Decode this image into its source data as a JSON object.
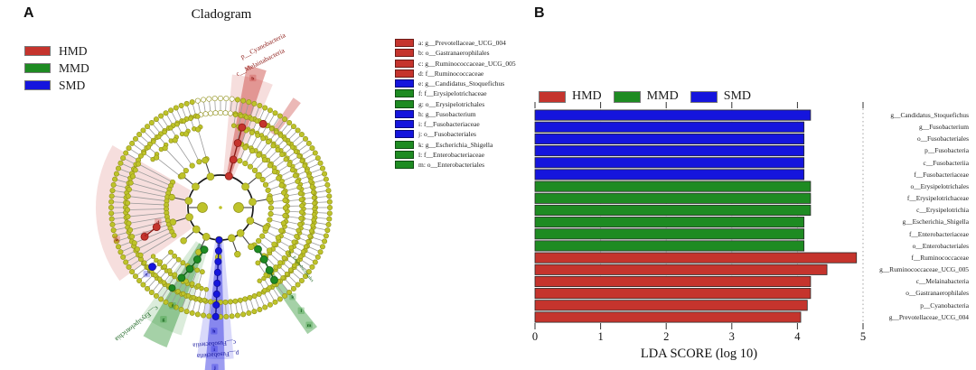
{
  "colors": {
    "hmd": "#c5342d",
    "mmd": "#1e8b22",
    "smd": "#1515dd",
    "hmd_dark": "#8c1a16",
    "mmd_dark": "#14601a",
    "smd_dark": "#10109a",
    "node_yellow": "#bec32a",
    "node_yellow_stroke": "#8f8f17"
  },
  "panel_a": {
    "label": "A",
    "title": "Cladogram",
    "group_legend": [
      {
        "label": "HMD",
        "color_key": "hmd"
      },
      {
        "label": "MMD",
        "color_key": "mmd"
      },
      {
        "label": "SMD",
        "color_key": "smd"
      }
    ],
    "taxa_legend": [
      {
        "key": "a",
        "label": "g__Prevotellaceae_UCG_004",
        "color_key": "hmd"
      },
      {
        "key": "b",
        "label": "o__Gastranaerophilales",
        "color_key": "hmd"
      },
      {
        "key": "c",
        "label": "g__Ruminococcaceae_UCG_005",
        "color_key": "hmd"
      },
      {
        "key": "d",
        "label": "f__Ruminococcaceae",
        "color_key": "hmd"
      },
      {
        "key": "e",
        "label": "g__Candidatus_Stoquefichus",
        "color_key": "smd"
      },
      {
        "key": "f",
        "label": "f__Erysipelotrichaceae",
        "color_key": "mmd"
      },
      {
        "key": "g",
        "label": "o__Erysipelotrichales",
        "color_key": "mmd"
      },
      {
        "key": "h",
        "label": "g__Fusobacterium",
        "color_key": "smd"
      },
      {
        "key": "i",
        "label": "f__Fusobacteriaceae",
        "color_key": "smd"
      },
      {
        "key": "j",
        "label": "o__Fusobacteriales",
        "color_key": "smd"
      },
      {
        "key": "k",
        "label": "g__Escherichia_Shigella",
        "color_key": "mmd"
      },
      {
        "key": "l",
        "label": "f__Enterobacteriaceae",
        "color_key": "mmd"
      },
      {
        "key": "m",
        "label": "o__Enterobacteriales",
        "color_key": "mmd"
      }
    ],
    "wedge_labels": [
      {
        "text": "p__Cyanobacteria",
        "color_key": "hmd_dark"
      },
      {
        "text": "c__Melainabacteria",
        "color_key": "hmd_dark"
      },
      {
        "text": "c__Erysipelotrichia",
        "color_key": "mmd_dark"
      },
      {
        "text": "c__Fusobacteriia",
        "color_key": "smd_dark"
      },
      {
        "text": "p__Fusobacteria",
        "color_key": "smd_dark"
      },
      {
        "text": "o__Enterobacteriales",
        "color_key": "mmd_dark"
      }
    ]
  },
  "panel_b": {
    "label": "B",
    "legend": [
      {
        "label": "HMD",
        "color_key": "hmd"
      },
      {
        "label": "MMD",
        "color_key": "mmd"
      },
      {
        "label": "SMD",
        "color_key": "smd"
      }
    ]
  },
  "chart_data": {
    "type": "bar",
    "orientation": "horizontal",
    "title": "",
    "xlabel": "LDA SCORE (log 10)",
    "ylabel": "",
    "xlim": [
      0,
      5
    ],
    "xticks": [
      0,
      1,
      2,
      3,
      4,
      5
    ],
    "grid": "dotted-vertical",
    "legend_position": "top",
    "bars": [
      {
        "label": "g__Candidatus_Stoquefichus",
        "group": "SMD",
        "value": 4.2
      },
      {
        "label": "g__Fusobacterium",
        "group": "SMD",
        "value": 4.1
      },
      {
        "label": "o__Fusobacteriales",
        "group": "SMD",
        "value": 4.1
      },
      {
        "label": "p__Fusobacteria",
        "group": "SMD",
        "value": 4.1
      },
      {
        "label": "c__Fusobacteriia",
        "group": "SMD",
        "value": 4.1
      },
      {
        "label": "f__Fusobacteriaceae",
        "group": "SMD",
        "value": 4.1
      },
      {
        "label": "o__Erysipelotrichales",
        "group": "MMD",
        "value": 4.2
      },
      {
        "label": "f__Erysipelotrichaceae",
        "group": "MMD",
        "value": 4.2
      },
      {
        "label": "c__Erysipelotrichia",
        "group": "MMD",
        "value": 4.2
      },
      {
        "label": "g__Escherichia_Shigella",
        "group": "MMD",
        "value": 4.1
      },
      {
        "label": "f__Enterobacteriaceae",
        "group": "MMD",
        "value": 4.1
      },
      {
        "label": "o__Enterobacteriales",
        "group": "MMD",
        "value": 4.1
      },
      {
        "label": "f__Ruminococcaceae",
        "group": "HMD",
        "value": 4.9
      },
      {
        "label": "g__Ruminococcaceae_UCG_005",
        "group": "HMD",
        "value": 4.45
      },
      {
        "label": "c__Melainabacteria",
        "group": "HMD",
        "value": 4.2
      },
      {
        "label": "o__Gastranaerophilales",
        "group": "HMD",
        "value": 4.2
      },
      {
        "label": "p__Cyanobacteria",
        "group": "HMD",
        "value": 4.15
      },
      {
        "label": "g__Prevotellaceae_UCG_004",
        "group": "HMD",
        "value": 4.05
      }
    ]
  }
}
